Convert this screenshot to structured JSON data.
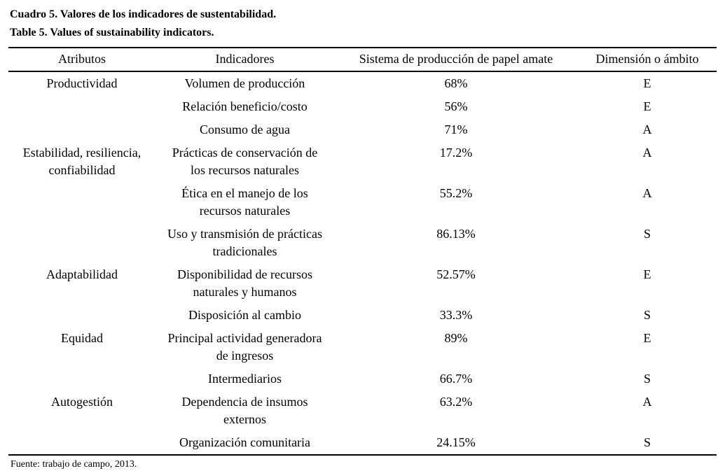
{
  "caption": {
    "spanish": "Cuadro 5. Valores de los indicadores de sustentabilidad.",
    "english": "Table 5. Values of sustainability indicators."
  },
  "table": {
    "headers": {
      "attribute": "Atributos",
      "indicator": "Indicadores",
      "system": "Sistema de producción de papel amate",
      "dimension": "Dimensión o ámbito"
    },
    "rows": [
      {
        "attribute": "Productividad",
        "indicator": "Volumen de producción",
        "value": "68%",
        "dimension": "E"
      },
      {
        "attribute": "",
        "indicator": "Relación beneficio/costo",
        "value": "56%",
        "dimension": "E"
      },
      {
        "attribute": "",
        "indicator": "Consumo de agua",
        "value": "71%",
        "dimension": "A"
      },
      {
        "attribute": "Estabilidad, resiliencia,\nconfiabilidad",
        "indicator": "Prácticas de conservación de\nlos recursos naturales",
        "value": "17.2%",
        "dimension": "A"
      },
      {
        "attribute": "",
        "indicator": "Ética en el manejo de los\nrecursos naturales",
        "value": "55.2%",
        "dimension": "A"
      },
      {
        "attribute": "",
        "indicator": "Uso y transmisión de prácticas\ntradicionales",
        "value": "86.13%",
        "dimension": "S"
      },
      {
        "attribute": "Adaptabilidad",
        "indicator": "Disponibilidad de recursos\nnaturales y humanos",
        "value": "52.57%",
        "dimension": "E"
      },
      {
        "attribute": "",
        "indicator": "Disposición al cambio",
        "value": "33.3%",
        "dimension": "S"
      },
      {
        "attribute": "Equidad",
        "indicator": "Principal actividad generadora\nde ingresos",
        "value": "89%",
        "dimension": "E"
      },
      {
        "attribute": "",
        "indicator": "Intermediarios",
        "value": "66.7%",
        "dimension": "S"
      },
      {
        "attribute": "Autogestión",
        "indicator": "Dependencia de insumos\nexternos",
        "value": "63.2%",
        "dimension": "A"
      },
      {
        "attribute": "",
        "indicator": "Organización comunitaria",
        "value": "24.15%",
        "dimension": "S"
      }
    ]
  },
  "source_note": "Fuente: trabajo de campo, 2013."
}
